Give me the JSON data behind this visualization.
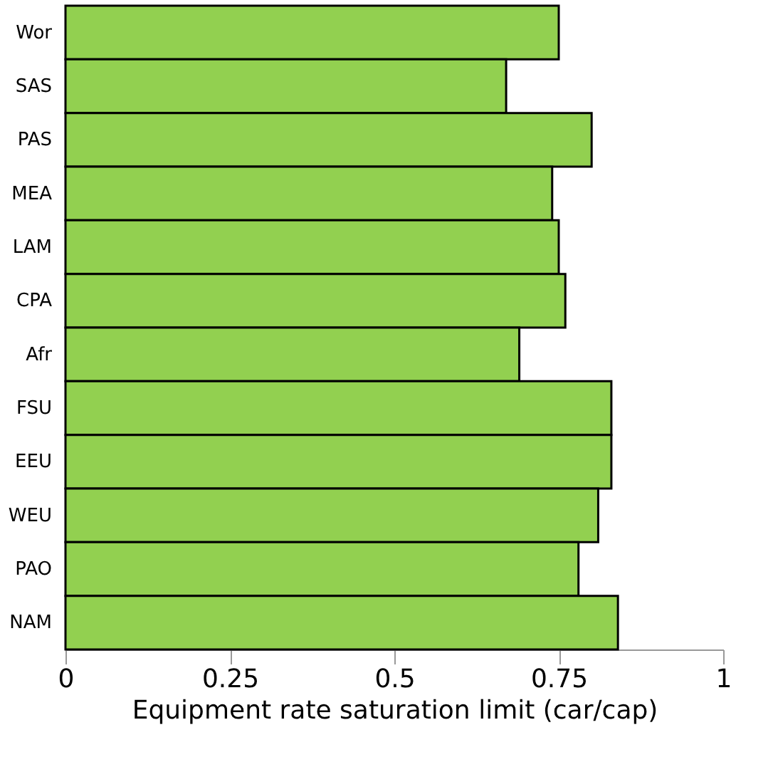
{
  "chart_data": {
    "type": "bar",
    "orientation": "horizontal",
    "xlabel": "Equipment rate saturation limit (car/cap)",
    "categories": [
      "Wor",
      "SAS",
      "PAS",
      "MEA",
      "LAM",
      "CPA",
      "Afr",
      "FSU",
      "EEU",
      "WEU",
      "PAO",
      "NAM"
    ],
    "values": [
      0.75,
      0.67,
      0.8,
      0.74,
      0.75,
      0.76,
      0.69,
      0.83,
      0.83,
      0.81,
      0.78,
      0.84
    ],
    "color": "#92d050",
    "xlim": [
      0,
      1
    ],
    "xticks": [
      0,
      0.25,
      0.5,
      0.75,
      1
    ],
    "grid": false
  }
}
